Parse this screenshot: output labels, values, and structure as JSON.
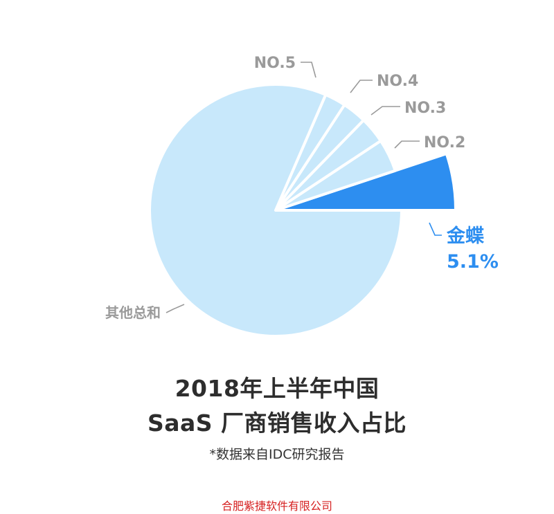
{
  "chart_data": {
    "type": "pie",
    "slices": [
      {
        "label": "金蝶",
        "value": 5.1,
        "value_label": "5.1%",
        "color": "#2d8ef0",
        "highlight": true
      },
      {
        "label": "NO.2",
        "value": 4.2,
        "color": "#c8e8fb"
      },
      {
        "label": "NO.3",
        "value": 3.4,
        "color": "#c8e8fb"
      },
      {
        "label": "NO.4",
        "value": 3.1,
        "color": "#c8e8fb"
      },
      {
        "label": "NO.5",
        "value": 2.7,
        "color": "#c8e8fb"
      },
      {
        "label": "其他总和",
        "value": 81.5,
        "color": "#c8e8fb"
      }
    ],
    "title": "2018年上半年中国",
    "subtitle": "SaaS 厂商销售收入占比",
    "note": "*数据来自IDC研究报告",
    "colors": {
      "accent": "#2d8ef0",
      "slice": "#c8e8fb",
      "label": "#9a9a9a",
      "separator": "#ffffff"
    }
  },
  "footer": {
    "company": "合肥紫捷软件有限公司"
  }
}
